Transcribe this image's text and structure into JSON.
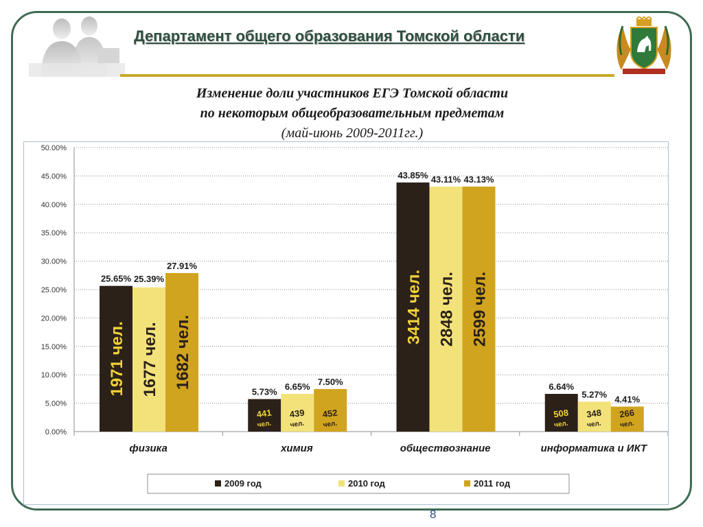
{
  "header": {
    "title": "Департамент общего образования Томской области"
  },
  "chart_title": {
    "line1": "Изменение доли участников ЕГЭ Томской области",
    "line2": "по некоторым общеобразовательным предметам",
    "line3": "(май-июнь 2009-2011гг.)"
  },
  "page_number": "8",
  "colors": {
    "series_2009": "#2b2118",
    "series_2010": "#f3e27a",
    "series_2011": "#d1a41f",
    "frame": "#3f6b52",
    "header_text": "#2f4f3f",
    "header_line": "#c7a82a"
  },
  "icons": [
    "people-silhouette-icon",
    "coat-of-arms-icon"
  ],
  "chart_data": {
    "type": "bar",
    "categories": [
      "физика",
      "химия",
      "обществознание",
      "информатика и ИКТ"
    ],
    "ylim": [
      0,
      50
    ],
    "yticks": [
      "0.00%",
      "5.00%",
      "10.00%",
      "15.00%",
      "20.00%",
      "25.00%",
      "30.00%",
      "35.00%",
      "40.00%",
      "45.00%",
      "50.00%"
    ],
    "grid": true,
    "legend_position": "bottom",
    "series": [
      {
        "name": "2009 год",
        "values": [
          25.65,
          5.73,
          43.85,
          6.64
        ],
        "labels": [
          "25.65%",
          "5.73%",
          "43.85%",
          "6.64%"
        ],
        "counts": [
          "1971 чел.",
          "441 чел.",
          "3414 чел.",
          "508 чел."
        ]
      },
      {
        "name": "2010 год",
        "values": [
          25.39,
          6.65,
          43.11,
          5.27
        ],
        "labels": [
          "25.39%",
          "6.65%",
          "43.11%",
          "5.27%"
        ],
        "counts": [
          "1677 чел.",
          "439 чел.",
          "2848 чел.",
          "348 чел."
        ]
      },
      {
        "name": "2011 год",
        "values": [
          27.91,
          7.5,
          43.13,
          4.41
        ],
        "labels": [
          "27.91%",
          "7.50%",
          "43.13%",
          "4.41%"
        ],
        "counts": [
          "1682 чел.",
          "452 чел.",
          "2599 чел.",
          "266 чел."
        ]
      }
    ]
  }
}
